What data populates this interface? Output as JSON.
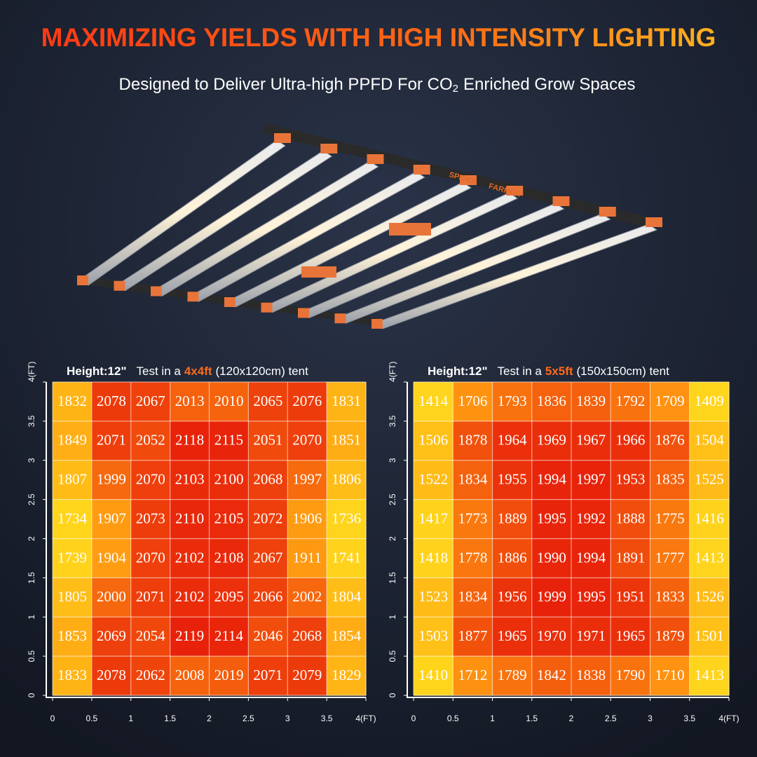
{
  "title": "MAXIMIZING YIELDS WITH HIGH INTENSITY LIGHTING",
  "subtitle": [
    "Designed to Deliver Ultra-high PPFD For CO",
    "2",
    "Enriched Grow Spaces"
  ],
  "brand": [
    "SPIDER",
    "FARMER"
  ],
  "chart_data": [
    {
      "type": "heatmap",
      "height_label": "Height:12\"",
      "caption": [
        "Test in a",
        "4x4ft",
        "(120x120cm) tent"
      ],
      "xlim": [
        0,
        4
      ],
      "ylim": [
        0,
        4
      ],
      "xticks": [
        0,
        0.5,
        1,
        1.5,
        2,
        2.5,
        3,
        3.5,
        {
          "value": 4,
          "label": "4(FT)"
        }
      ],
      "yticks": [
        0,
        0.5,
        1,
        1.5,
        2,
        2.5,
        3,
        3.5,
        {
          "value": 4,
          "label": "4(FT)"
        }
      ],
      "colors": [
        "#ffd51c",
        "#ff9410",
        "#e8220a"
      ],
      "grid": true,
      "values": [
        [
          1832,
          2078,
          2067,
          2013,
          2010,
          2065,
          2076,
          1831
        ],
        [
          1849,
          2071,
          2052,
          2118,
          2115,
          2051,
          2070,
          1851
        ],
        [
          1807,
          1999,
          2070,
          2103,
          2100,
          2068,
          1997,
          1806
        ],
        [
          1734,
          1907,
          2073,
          2110,
          2105,
          2072,
          1906,
          1736
        ],
        [
          1739,
          1904,
          2070,
          2102,
          2108,
          2067,
          1911,
          1741
        ],
        [
          1805,
          2000,
          2071,
          2102,
          2095,
          2066,
          2002,
          1804
        ],
        [
          1853,
          2069,
          2054,
          2119,
          2114,
          2046,
          2068,
          1854
        ],
        [
          1833,
          2078,
          2062,
          2008,
          2019,
          2071,
          2079,
          1829
        ]
      ]
    },
    {
      "type": "heatmap",
      "height_label": "Height:12\"",
      "caption": [
        "Test in a",
        "5x5ft",
        "(150x150cm) tent"
      ],
      "xlim": [
        0,
        4
      ],
      "ylim": [
        0,
        4
      ],
      "xticks": [
        0,
        0.5,
        1,
        1.5,
        2,
        2.5,
        3,
        3.5,
        {
          "value": 4,
          "label": "4(FT)"
        }
      ],
      "yticks": [
        0,
        0.5,
        1,
        1.5,
        2,
        2.5,
        3,
        3.5,
        {
          "value": 4,
          "label": "4(FT)"
        }
      ],
      "colors": [
        "#ffd51c",
        "#ff9410",
        "#e8220a"
      ],
      "grid": true,
      "values": [
        [
          1414,
          1706,
          1793,
          1836,
          1839,
          1792,
          1709,
          1409
        ],
        [
          1506,
          1878,
          1964,
          1969,
          1967,
          1966,
          1876,
          1504
        ],
        [
          1522,
          1834,
          1955,
          1994,
          1997,
          1953,
          1835,
          1525
        ],
        [
          1417,
          1773,
          1889,
          1995,
          1992,
          1888,
          1775,
          1416
        ],
        [
          1418,
          1778,
          1886,
          1990,
          1994,
          1891,
          1777,
          1413
        ],
        [
          1523,
          1834,
          1956,
          1999,
          1995,
          1951,
          1833,
          1526
        ],
        [
          1503,
          1877,
          1965,
          1970,
          1971,
          1965,
          1879,
          1501
        ],
        [
          1410,
          1712,
          1789,
          1842,
          1838,
          1790,
          1710,
          1413
        ]
      ]
    }
  ]
}
